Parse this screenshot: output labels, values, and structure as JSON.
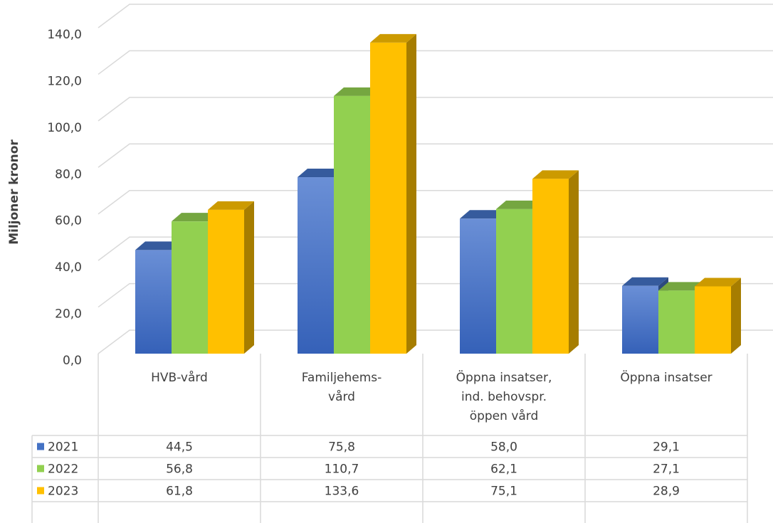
{
  "chart_data": {
    "type": "bar3d",
    "y_label": "Miljoner kronor",
    "categories": [
      "HVB-vård",
      "Familjehems-\nvård",
      "Öppna insatser,\nind. behovspr.\nöppen vård",
      "Öppna insatser"
    ],
    "series": [
      {
        "name": "2021",
        "color": "#4472c4",
        "values": [
          44.5,
          75.8,
          58.0,
          29.1
        ],
        "value_labels": [
          "44,5",
          "75,8",
          "58,0",
          "29,1"
        ]
      },
      {
        "name": "2022",
        "color": "#92d050",
        "values": [
          56.8,
          110.7,
          62.1,
          27.1
        ],
        "value_labels": [
          "56,8",
          "110,7",
          "62,1",
          "27,1"
        ]
      },
      {
        "name": "2023",
        "color": "#ffc000",
        "values": [
          61.8,
          133.6,
          75.1,
          28.9
        ],
        "value_labels": [
          "61,8",
          "133,6",
          "75,1",
          "28,9"
        ]
      }
    ],
    "ylim": [
      0,
      140
    ],
    "yticks": [
      {
        "value": 0,
        "label": "0,0"
      },
      {
        "value": 20,
        "label": "20,0"
      },
      {
        "value": 40,
        "label": "40,0"
      },
      {
        "value": 60,
        "label": "60,0"
      },
      {
        "value": 80,
        "label": "80,0"
      },
      {
        "value": 100,
        "label": "100,0"
      },
      {
        "value": 120,
        "label": "120,0"
      },
      {
        "value": 140,
        "label": "140,0"
      }
    ],
    "grid": true,
    "data_table": true
  }
}
